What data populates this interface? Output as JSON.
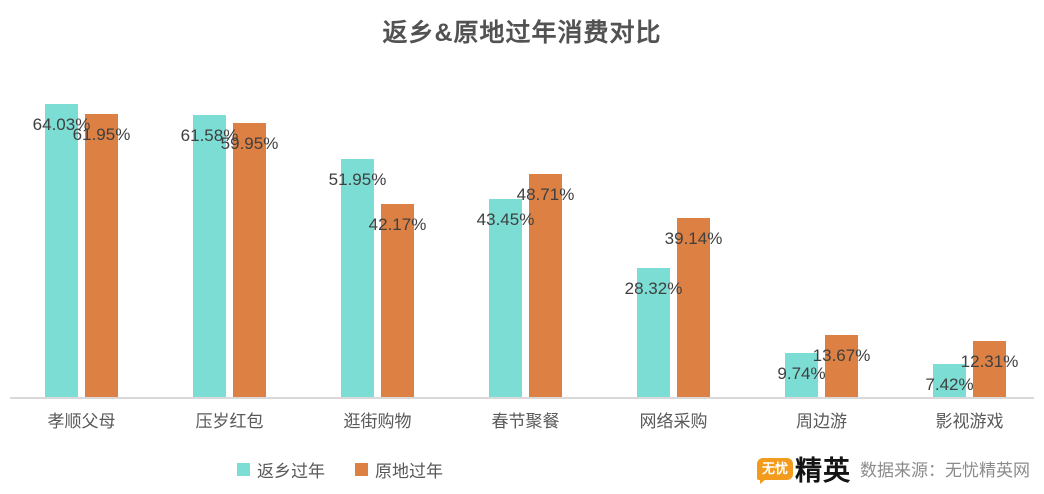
{
  "title": "返乡&原地过年消费对比",
  "chart_data": {
    "type": "bar",
    "title": "返乡&原地过年消费对比",
    "categories": [
      "孝顺父母",
      "压岁红包",
      "逛街购物",
      "春节聚餐",
      "网络采购",
      "周边游",
      "影视游戏"
    ],
    "series": [
      {
        "name": "返乡过年",
        "color": "#7CDDD4",
        "values": [
          64.03,
          61.58,
          51.95,
          43.45,
          28.32,
          9.74,
          7.42
        ]
      },
      {
        "name": "原地过年",
        "color": "#DC8044",
        "values": [
          61.95,
          59.95,
          42.17,
          48.71,
          39.14,
          13.67,
          12.31
        ]
      }
    ],
    "value_suffix": "%",
    "data_labels": [
      [
        "64.03%",
        "61.58%",
        "51.95%",
        "43.45%",
        "28.32%",
        "9.74%",
        "7.42%"
      ],
      [
        "61.95%",
        "59.95%",
        "42.17%",
        "48.71%",
        "39.14%",
        "13.67%",
        "12.31%"
      ]
    ],
    "xlabel": "",
    "ylabel": "",
    "ylim": [
      0,
      71
    ],
    "grid": false,
    "legend_position": "bottom"
  },
  "legend": {
    "items": [
      {
        "label": "返乡过年",
        "color": "#7CDDD4"
      },
      {
        "label": "原地过年",
        "color": "#DC8044"
      }
    ]
  },
  "footer": {
    "logo_badge": "无忧",
    "logo_name": "精英",
    "source": "数据来源：无忧精英网"
  }
}
